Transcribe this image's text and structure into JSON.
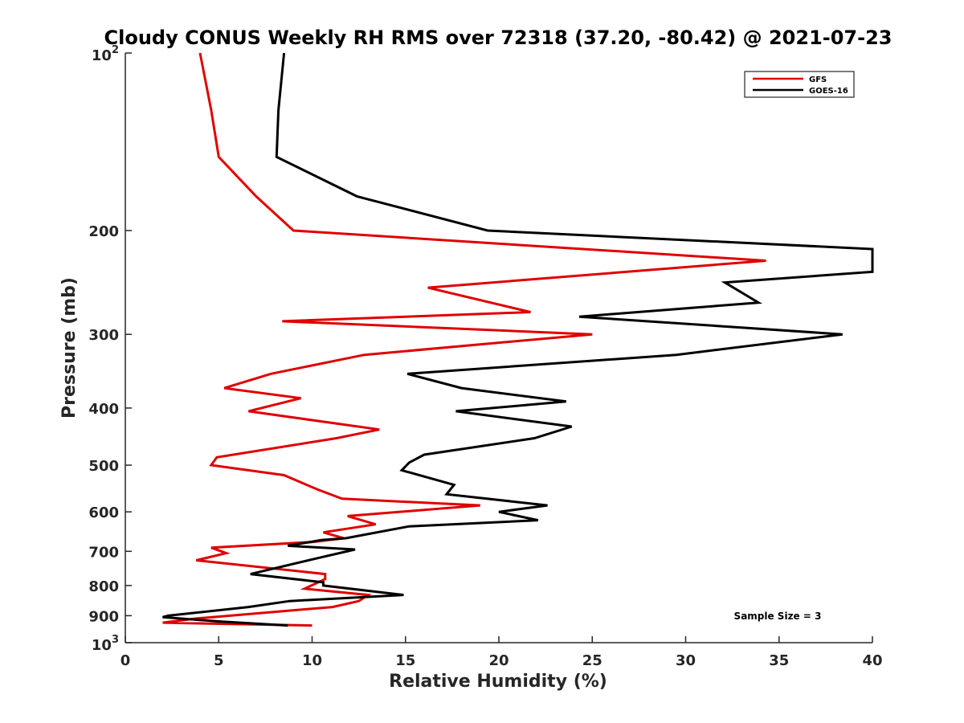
{
  "chart_data": {
    "type": "line",
    "title": "Cloudy CONUS Weekly RH RMS over 72318 (37.20, -80.42) @ 2021-07-23",
    "xlabel": "Relative Humidity (%)",
    "ylabel": "Pressure (mb)",
    "xlim": [
      0,
      40
    ],
    "ylim": [
      100,
      1000
    ],
    "yscale": "log",
    "y_reversed": true,
    "grid": false,
    "xticks": [
      0,
      5,
      10,
      15,
      20,
      25,
      30,
      35,
      40
    ],
    "xtick_labels": [
      "0",
      "5",
      "10",
      "15",
      "20",
      "25",
      "30",
      "35",
      "40"
    ],
    "yticks": [
      100,
      200,
      300,
      400,
      500,
      600,
      700,
      800,
      900,
      1000
    ],
    "ytick_labels": [
      {
        "base": "10",
        "exp": "2"
      },
      {
        "base": "200",
        "exp": ""
      },
      {
        "base": "300",
        "exp": ""
      },
      {
        "base": "400",
        "exp": ""
      },
      {
        "base": "500",
        "exp": ""
      },
      {
        "base": "600",
        "exp": ""
      },
      {
        "base": "700",
        "exp": ""
      },
      {
        "base": "800",
        "exp": ""
      },
      {
        "base": "900",
        "exp": ""
      },
      {
        "base": "10",
        "exp": "3"
      }
    ],
    "legend_position": "top-right",
    "annotation": "Sample Size = 3",
    "series": [
      {
        "name": "GFS",
        "color": "#e00000",
        "points": [
          [
            4.0,
            100
          ],
          [
            4.6,
            125
          ],
          [
            5.0,
            150
          ],
          [
            7.0,
            175
          ],
          [
            9.0,
            200
          ],
          [
            34.3,
            225
          ],
          [
            16.2,
            250
          ],
          [
            21.7,
            275
          ],
          [
            8.4,
            285
          ],
          [
            25.0,
            300
          ],
          [
            12.8,
            325
          ],
          [
            7.8,
            350
          ],
          [
            5.3,
            370
          ],
          [
            9.4,
            385
          ],
          [
            6.6,
            405
          ],
          [
            13.6,
            435
          ],
          [
            11.3,
            450
          ],
          [
            4.9,
            485
          ],
          [
            4.6,
            500
          ],
          [
            8.5,
            520
          ],
          [
            10.3,
            550
          ],
          [
            11.6,
            570
          ],
          [
            19.0,
            585
          ],
          [
            11.9,
            610
          ],
          [
            13.4,
            630
          ],
          [
            10.6,
            650
          ],
          [
            11.7,
            665
          ],
          [
            10.0,
            675
          ],
          [
            4.6,
            690
          ],
          [
            5.4,
            705
          ],
          [
            3.8,
            725
          ],
          [
            10.7,
            765
          ],
          [
            10.7,
            780
          ],
          [
            9.6,
            810
          ],
          [
            13.0,
            830
          ],
          [
            12.5,
            850
          ],
          [
            11.1,
            870
          ],
          [
            3.8,
            910
          ],
          [
            2.0,
            925
          ],
          [
            10.0,
            935
          ]
        ]
      },
      {
        "name": "GOES-16",
        "color": "#000000",
        "points": [
          [
            8.5,
            100
          ],
          [
            8.2,
            125
          ],
          [
            8.1,
            150
          ],
          [
            12.4,
            175
          ],
          [
            19.4,
            200
          ],
          [
            40.0,
            215
          ],
          [
            40.0,
            235
          ],
          [
            32.1,
            245
          ],
          [
            33.9,
            265
          ],
          [
            24.3,
            280
          ],
          [
            38.4,
            300
          ],
          [
            29.5,
            325
          ],
          [
            15.1,
            350
          ],
          [
            18.0,
            370
          ],
          [
            23.6,
            390
          ],
          [
            17.7,
            405
          ],
          [
            23.9,
            430
          ],
          [
            21.9,
            450
          ],
          [
            16.0,
            480
          ],
          [
            15.2,
            495
          ],
          [
            14.8,
            510
          ],
          [
            17.6,
            540
          ],
          [
            17.2,
            560
          ],
          [
            22.6,
            585
          ],
          [
            20.0,
            600
          ],
          [
            22.1,
            620
          ],
          [
            15.2,
            635
          ],
          [
            11.8,
            665
          ],
          [
            10.5,
            670
          ],
          [
            8.7,
            685
          ],
          [
            12.3,
            695
          ],
          [
            10.2,
            720
          ],
          [
            6.7,
            765
          ],
          [
            10.6,
            790
          ],
          [
            10.6,
            800
          ],
          [
            14.9,
            830
          ],
          [
            8.8,
            850
          ],
          [
            6.6,
            870
          ],
          [
            2.3,
            900
          ],
          [
            2.0,
            905
          ],
          [
            4.9,
            920
          ],
          [
            8.7,
            935
          ]
        ]
      }
    ]
  }
}
